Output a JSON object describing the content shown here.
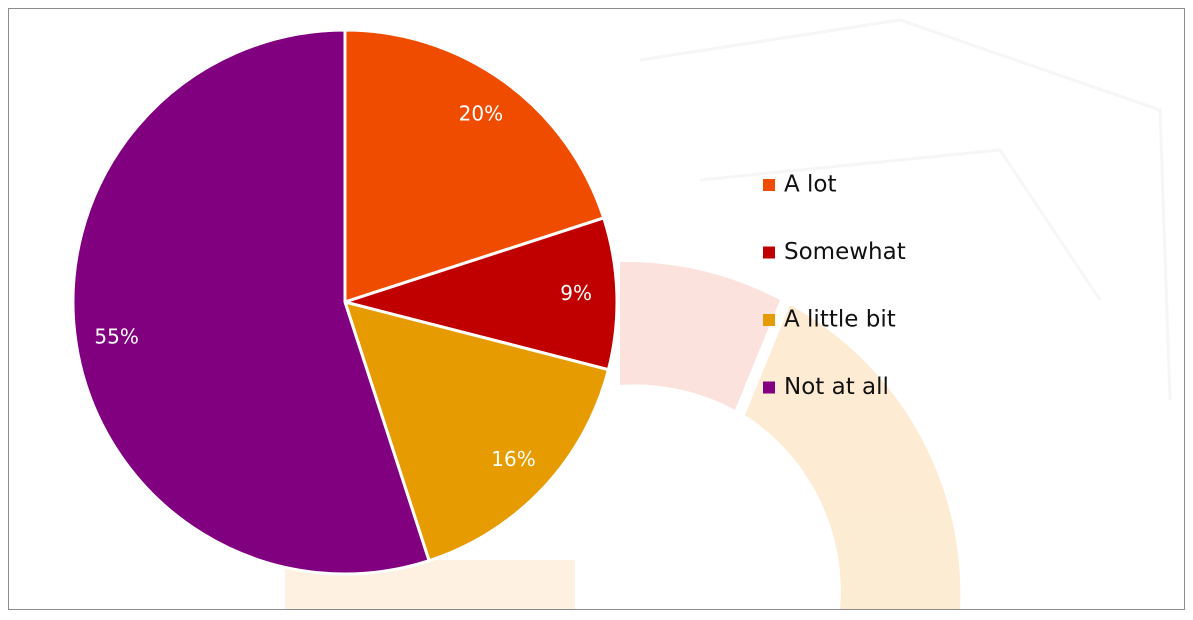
{
  "chart_data": {
    "type": "pie",
    "categories": [
      "A lot",
      "Somewhat",
      "A little bit",
      "Not at all"
    ],
    "values": [
      20,
      9,
      16,
      55
    ],
    "value_labels": [
      "20%",
      "9%",
      "16%",
      "55%"
    ],
    "colors": [
      "#f04c00",
      "#c00000",
      "#e69c00",
      "#800080"
    ],
    "legend": "right"
  }
}
